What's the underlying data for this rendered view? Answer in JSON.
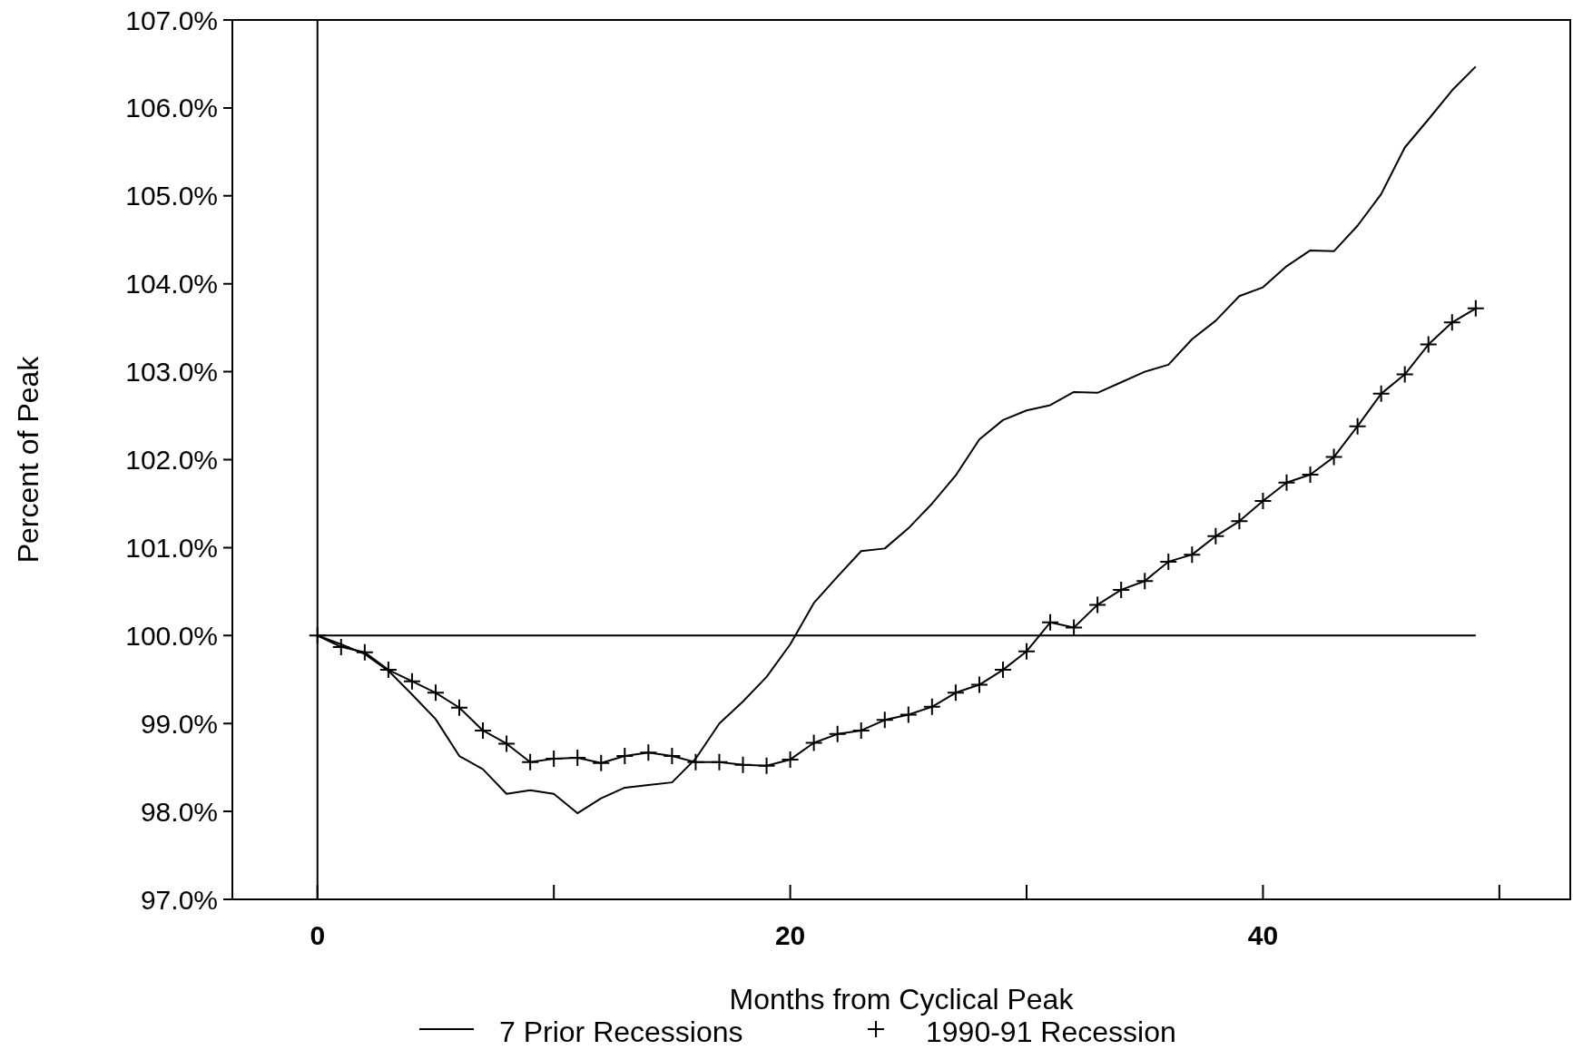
{
  "chart_data": {
    "type": "line",
    "xlabel": "Months from Cyclical Peak",
    "ylabel": "Percent of Peak",
    "x": [
      0,
      1,
      2,
      3,
      4,
      5,
      6,
      7,
      8,
      9,
      10,
      11,
      12,
      13,
      14,
      15,
      16,
      17,
      18,
      19,
      20,
      21,
      22,
      23,
      24,
      25,
      26,
      27,
      28,
      29,
      30,
      31,
      32,
      33,
      34,
      35,
      36,
      37,
      38,
      39,
      40,
      41,
      42,
      43,
      44,
      45,
      46,
      47,
      48,
      49
    ],
    "series": [
      {
        "name": "7 Prior Recessions",
        "color": "#000000",
        "marker": "none",
        "values": [
          100.0,
          99.9,
          99.79,
          99.6,
          99.33,
          99.05,
          98.63,
          98.48,
          98.2,
          98.24,
          98.2,
          97.98,
          98.15,
          98.27,
          98.3,
          98.33,
          98.6,
          99.0,
          99.25,
          99.53,
          99.9,
          100.37,
          100.67,
          100.96,
          100.99,
          101.22,
          101.5,
          101.82,
          102.23,
          102.45,
          102.56,
          102.62,
          102.77,
          102.76,
          102.88,
          103.0,
          103.08,
          103.37,
          103.58,
          103.86,
          103.96,
          104.2,
          104.38,
          104.37,
          104.66,
          105.02,
          105.55,
          105.87,
          106.2,
          106.47
        ]
      },
      {
        "name": "1990-91 Recession",
        "color": "#000000",
        "marker": "cross",
        "values": [
          100.0,
          99.87,
          99.81,
          99.61,
          99.48,
          99.35,
          99.18,
          98.92,
          98.77,
          98.56,
          98.6,
          98.61,
          98.55,
          98.63,
          98.67,
          98.63,
          98.56,
          98.56,
          98.53,
          98.52,
          98.59,
          98.78,
          98.88,
          98.92,
          99.04,
          99.1,
          99.19,
          99.35,
          99.44,
          99.61,
          99.82,
          100.15,
          100.09,
          100.35,
          100.52,
          100.62,
          100.84,
          100.92,
          101.13,
          101.3,
          101.53,
          101.74,
          101.83,
          102.03,
          102.38,
          102.75,
          102.97,
          103.31,
          103.56,
          103.72
        ]
      }
    ],
    "xlim": [
      -3.6,
      53
    ],
    "xticks": [
      0,
      {
        "value": 10,
        "label": null
      },
      20,
      {
        "value": 30,
        "label": null
      },
      40,
      {
        "value": 50,
        "label": null
      }
    ],
    "ylim": [
      97,
      107
    ],
    "yticks": [
      {
        "value": 97,
        "label": "97.0%"
      },
      {
        "value": 98,
        "label": "98.0%"
      },
      {
        "value": 99,
        "label": "99.0%"
      },
      {
        "value": 100,
        "label": "100.0%"
      },
      {
        "value": 101,
        "label": "101.0%"
      },
      {
        "value": 102,
        "label": "102.0%"
      },
      {
        "value": 103,
        "label": "103.0%"
      },
      {
        "value": 104,
        "label": "104.0%"
      },
      {
        "value": 105,
        "label": "105.0%"
      },
      {
        "value": 106,
        "label": "106.0%"
      },
      {
        "value": 107,
        "label": "107.0%"
      }
    ],
    "ref_lines": [
      {
        "axis": "x",
        "value": 0
      },
      {
        "axis": "y",
        "value": 100
      }
    ],
    "legend": "bottom",
    "grid": false
  }
}
